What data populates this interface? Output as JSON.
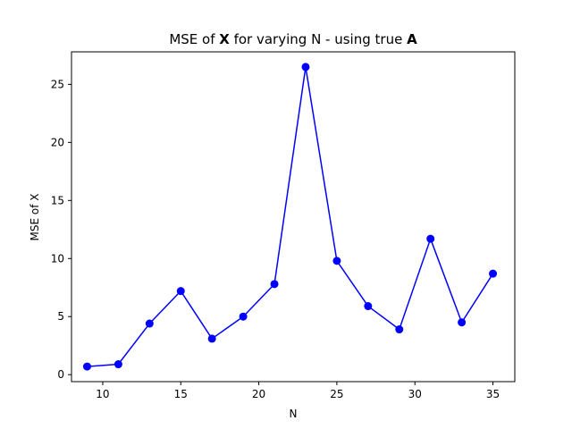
{
  "chart_data": {
    "type": "line",
    "title": {
      "prefix": "MSE of ",
      "bold1": "X",
      "middle": " for varying N - using true ",
      "bold2": "A"
    },
    "xlabel": "N",
    "ylabel": "MSE of X",
    "xlim": [
      8,
      36.4
    ],
    "ylim": [
      -0.6,
      27.8
    ],
    "xticks": [
      10,
      15,
      20,
      25,
      30,
      35
    ],
    "yticks": [
      0,
      5,
      10,
      15,
      20,
      25
    ],
    "grid": false,
    "series": [
      {
        "color": "#0000ff",
        "marker": "circle",
        "x": [
          9,
          11,
          13,
          15,
          17,
          19,
          21,
          23,
          25,
          27,
          29,
          31,
          33,
          35
        ],
        "y": [
          0.7,
          0.9,
          4.4,
          7.2,
          3.1,
          5.0,
          7.8,
          26.5,
          9.8,
          5.9,
          3.9,
          11.7,
          4.5,
          8.7
        ]
      }
    ]
  }
}
